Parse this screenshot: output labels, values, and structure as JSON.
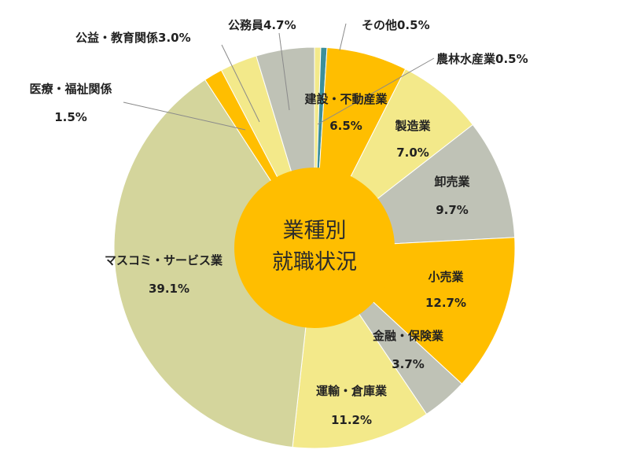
{
  "chart_data": {
    "type": "pie",
    "variant": "donut",
    "title_lines": [
      "業種別",
      "就職状況"
    ],
    "start": "12 o'clock",
    "direction": "clockwise",
    "slices": [
      {
        "name": "その他",
        "value": 0.5,
        "value_label": "0.5%",
        "color": "#F3E98A"
      },
      {
        "name": "農林水産業",
        "value": 0.5,
        "value_label": "0.5%",
        "color": "#3C8F9A"
      },
      {
        "name": "建設・不動産業",
        "value": 6.5,
        "value_label": "6.5%",
        "color": "#FFBE00"
      },
      {
        "name": "製造業",
        "value": 7.0,
        "value_label": "7.0%",
        "color": "#F3E98A"
      },
      {
        "name": "卸売業",
        "value": 9.7,
        "value_label": "9.7%",
        "color": "#BFC2B6"
      },
      {
        "name": "小売業",
        "value": 12.7,
        "value_label": "12.7%",
        "color": "#FFBE00"
      },
      {
        "name": "金融・保険業",
        "value": 3.7,
        "value_label": "3.7%",
        "color": "#BFC2B6"
      },
      {
        "name": "運輸・倉庫業",
        "value": 11.2,
        "value_label": "11.2%",
        "color": "#F3E98A"
      },
      {
        "name": "マスコミ・サービス業",
        "value": 39.1,
        "value_label": "39.1%",
        "color": "#D4D59C"
      },
      {
        "name": "医療・福祉関係",
        "value": 1.5,
        "value_label": "1.5%",
        "color": "#FFBE00"
      },
      {
        "name": "公益・教育関係",
        "value": 3.0,
        "value_label": "3.0%",
        "color": "#F3E98A"
      },
      {
        "name": "公務員",
        "value": 4.7,
        "value_label": "4.7%",
        "color": "#BFC2B6"
      }
    ],
    "center_color": "#FFBE00",
    "leader_color": "#8A8A8A"
  }
}
